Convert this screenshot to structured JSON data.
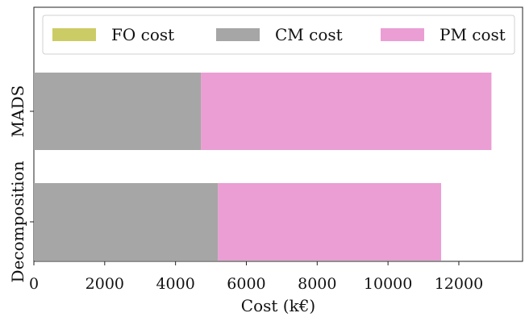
{
  "chart_data": {
    "type": "bar",
    "orientation": "horizontal",
    "stacked": true,
    "categories": [
      "Decomposition",
      "MADS"
    ],
    "series": [
      {
        "name": "FO cost",
        "color": "#cccc66",
        "values": [
          0,
          0
        ]
      },
      {
        "name": "CM cost",
        "color": "#a6a6a6",
        "values": [
          5200,
          4720
        ]
      },
      {
        "name": "PM cost",
        "color": "#ea9ed4",
        "values": [
          6300,
          8200
        ]
      }
    ],
    "xlabel": "Cost (k€)",
    "ylabel": "",
    "xlim": [
      0,
      13800
    ],
    "xticks": [
      0,
      2000,
      4000,
      6000,
      8000,
      10000,
      12000
    ],
    "xtick_labels": [
      "0",
      "2000",
      "4000",
      "6000",
      "8000",
      "10000",
      "12000"
    ],
    "grid": false,
    "legend_position": "top"
  }
}
